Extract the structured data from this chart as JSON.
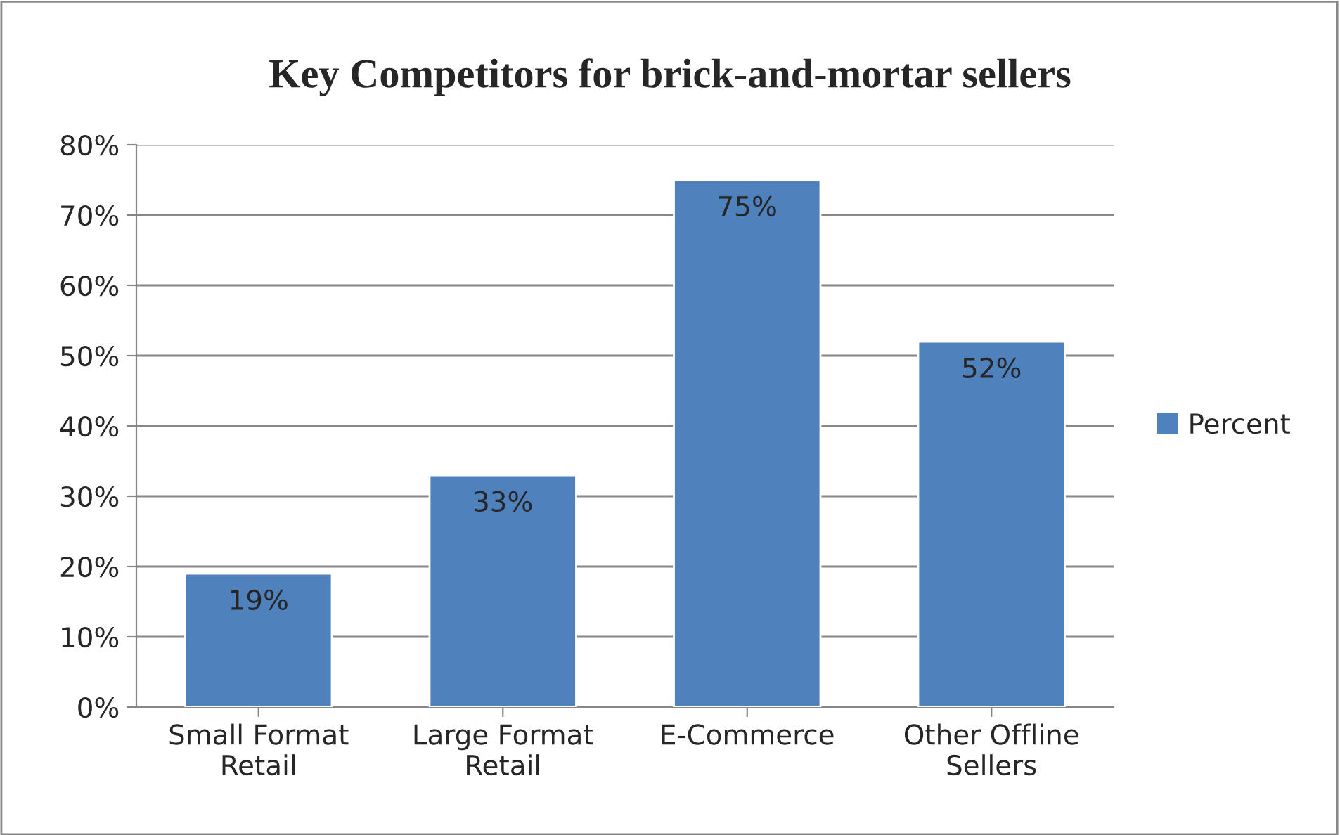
{
  "chart_data": {
    "type": "bar",
    "title": "Key Competitors for brick-and-mortar sellers",
    "categories": [
      "Small Format\nRetail",
      "Large Format\nRetail",
      "E-Commerce",
      "Other Offline\nSellers"
    ],
    "series": [
      {
        "name": "Percent",
        "color": "#4f81bd",
        "values": [
          19,
          33,
          75,
          52
        ],
        "value_labels": [
          "19%",
          "33%",
          "75%",
          "52%"
        ]
      }
    ],
    "ylim": [
      0,
      80
    ],
    "yticks": [
      {
        "value": 0,
        "label": "0%"
      },
      {
        "value": 10,
        "label": "10%"
      },
      {
        "value": 20,
        "label": "20%"
      },
      {
        "value": 30,
        "label": "30%"
      },
      {
        "value": 40,
        "label": "40%"
      },
      {
        "value": 50,
        "label": "50%"
      },
      {
        "value": 60,
        "label": "60%"
      },
      {
        "value": 70,
        "label": "70%"
      },
      {
        "value": 80,
        "label": "80%"
      }
    ],
    "grid": "y",
    "legend": "right"
  }
}
